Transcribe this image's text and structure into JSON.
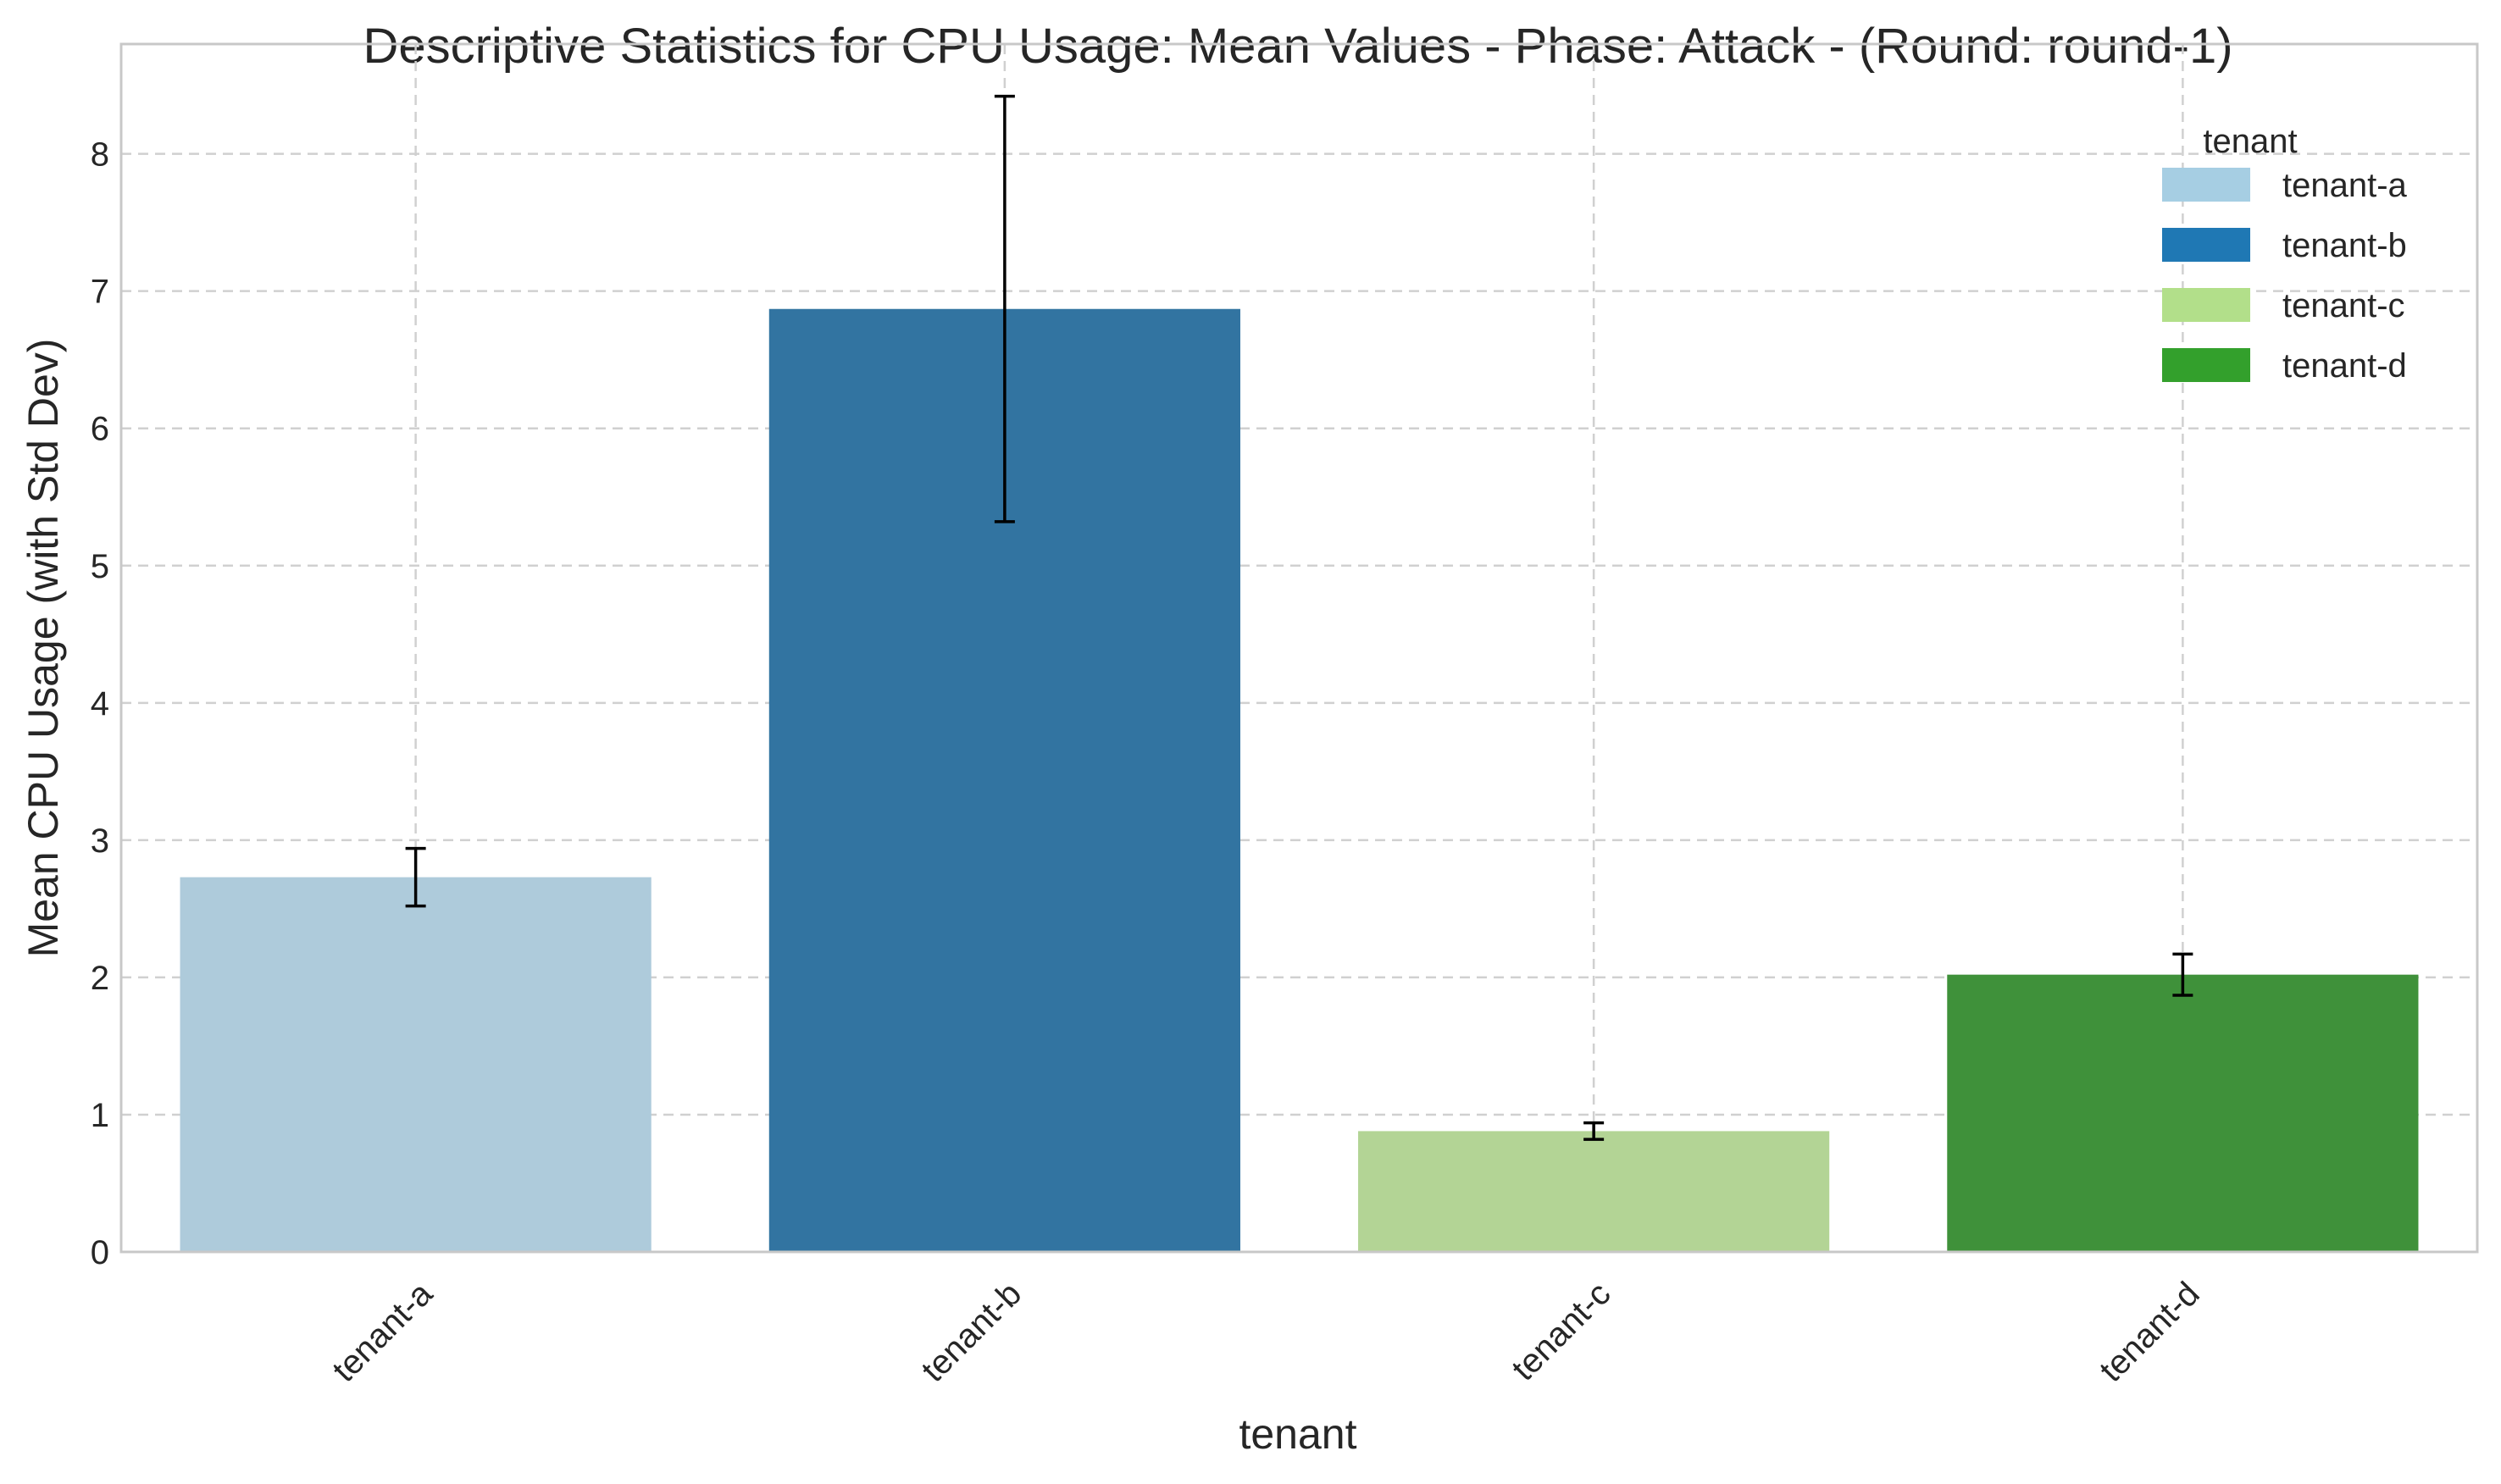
{
  "chart_data": {
    "type": "bar",
    "title": "Descriptive Statistics for CPU Usage: Mean Values - Phase: Attack - (Round: round-1)",
    "xlabel": "tenant",
    "ylabel": "Mean CPU Usage (with Std Dev)",
    "categories": [
      "tenant-a",
      "tenant-b",
      "tenant-c",
      "tenant-d"
    ],
    "values": [
      2.73,
      6.87,
      0.88,
      2.02
    ],
    "std_dev": [
      0.21,
      1.55,
      0.06,
      0.15
    ],
    "ylim": [
      0,
      8.8
    ],
    "yticks": [
      "0",
      "1",
      "2",
      "3",
      "4",
      "5",
      "6",
      "7",
      "8"
    ],
    "bar_colors": [
      "#aecbdb",
      "#3274a1",
      "#b3d495",
      "#3f913a"
    ],
    "grid": true,
    "legend": {
      "title": "tenant",
      "placement": "top-right",
      "entries": [
        {
          "label": "tenant-a",
          "color": "#a6cee3"
        },
        {
          "label": "tenant-b",
          "color": "#1f78b4"
        },
        {
          "label": "tenant-c",
          "color": "#b2df8a"
        },
        {
          "label": "tenant-d",
          "color": "#33a02c"
        }
      ]
    }
  }
}
